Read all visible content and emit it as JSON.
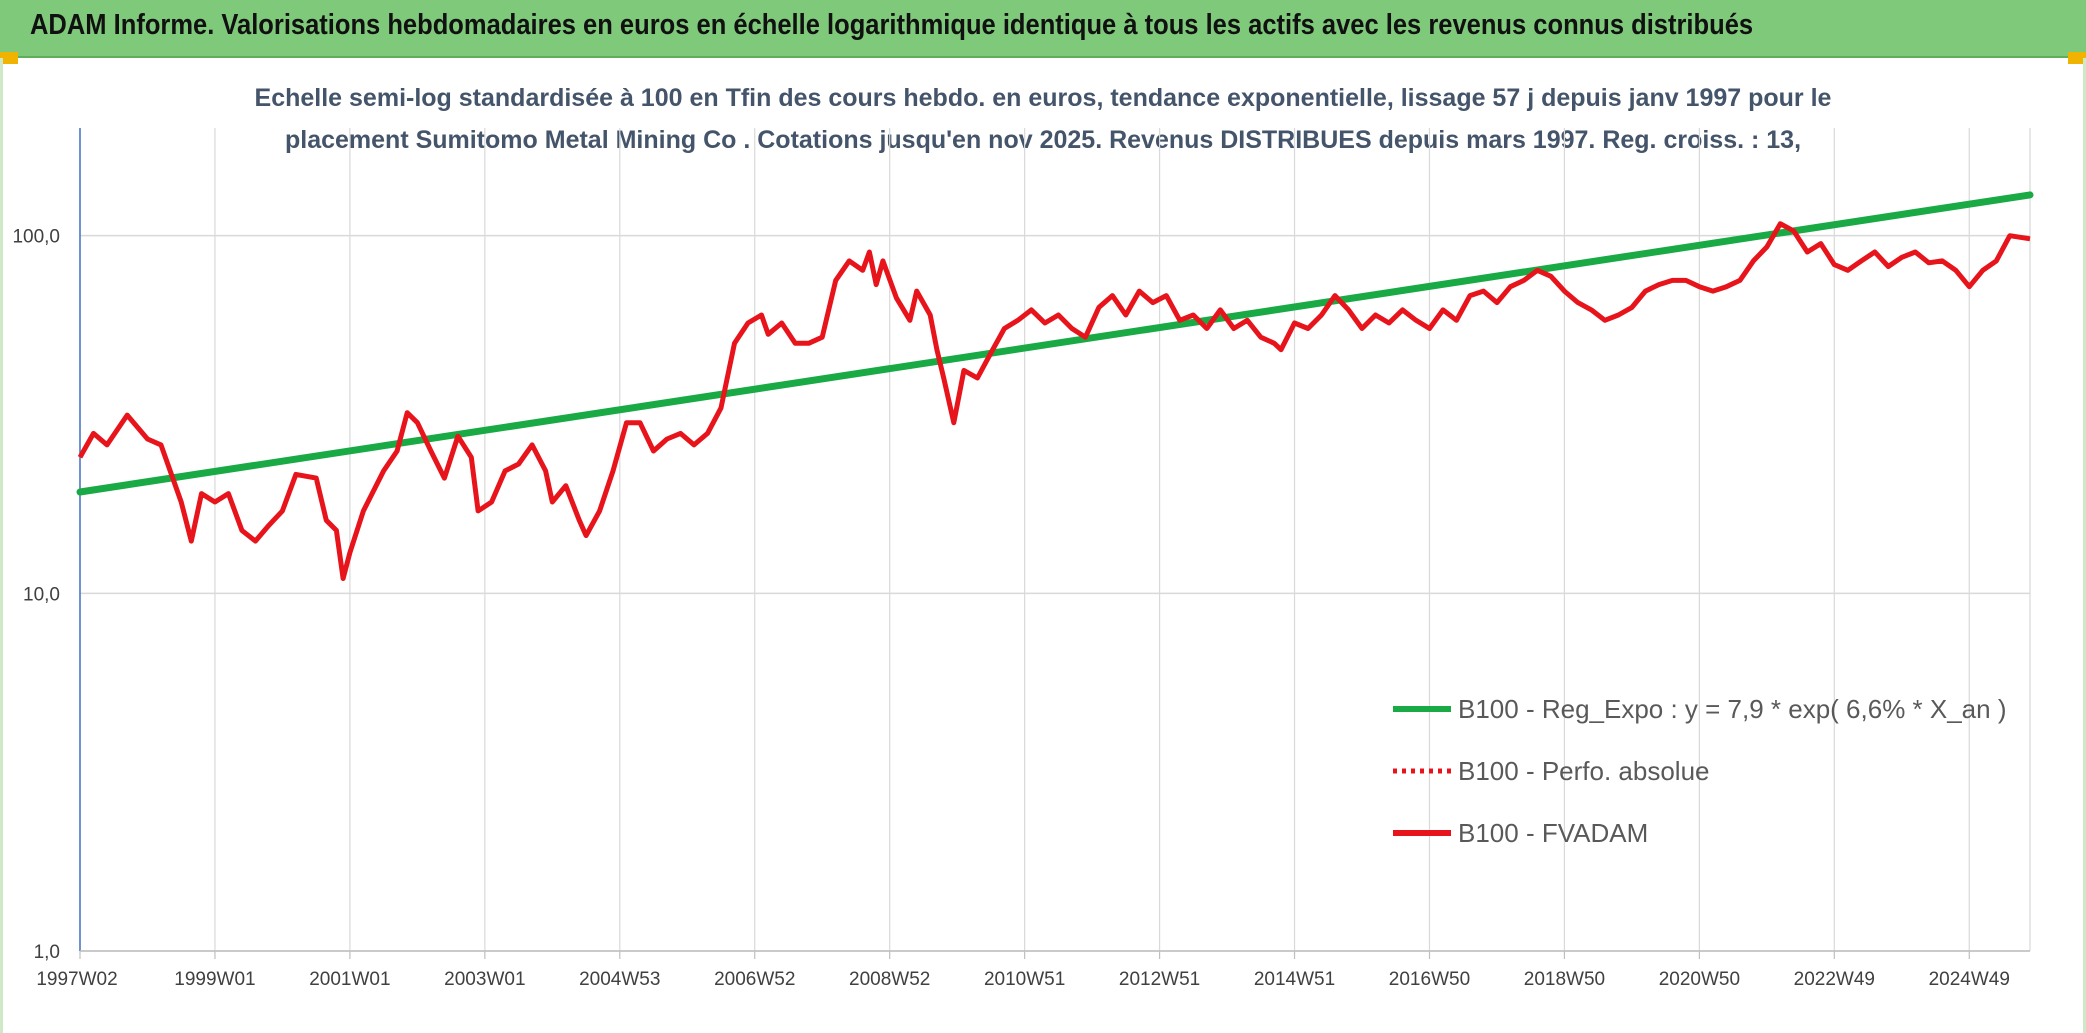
{
  "header": {
    "title": "ADAM Informe. Valorisations hebdomadaires en euros en échelle logarithmique identique à tous les actifs avec les revenus connus distribués"
  },
  "colors": {
    "header_bg": "#7fc97a",
    "regression": "#1aaa45",
    "fvadam": "#e8141b",
    "grid": "#d9d9d9",
    "axis": "#4472c4"
  },
  "chart_data": {
    "type": "line",
    "scale": "log",
    "title_lines": [
      "Echelle semi-log standardisée à 100 en Tfin des cours hebdo. en euros, tendance exponentielle, lissage 57 j depuis janv 1997 pour le",
      "placement Sumitomo Metal Mining Co . Cotations jusqu'en nov 2025. Revenus DISTRIBUES depuis mars 1997. Reg. croiss. : 13,"
    ],
    "y_ticks": [
      "1,0",
      "10,0",
      "100,0"
    ],
    "ylim": [
      1,
      200
    ],
    "xlim": [
      1997.0,
      2025.9
    ],
    "x_ticks": [
      {
        "label": "1997W02",
        "year": 1997.0
      },
      {
        "label": "1999W01",
        "year": 1999.0
      },
      {
        "label": "2001W01",
        "year": 2001.0
      },
      {
        "label": "2003W01",
        "year": 2003.0
      },
      {
        "label": "2004W53",
        "year": 2005.0
      },
      {
        "label": "2006W52",
        "year": 2007.0
      },
      {
        "label": "2008W52",
        "year": 2009.0
      },
      {
        "label": "2010W51",
        "year": 2011.0
      },
      {
        "label": "2012W51",
        "year": 2013.0
      },
      {
        "label": "2014W51",
        "year": 2015.0
      },
      {
        "label": "2016W50",
        "year": 2017.0
      },
      {
        "label": "2018W50",
        "year": 2019.0
      },
      {
        "label": "2020W50",
        "year": 2021.0
      },
      {
        "label": "2022W49",
        "year": 2023.0
      },
      {
        "label": "2024W49",
        "year": 2025.0
      }
    ],
    "legend": [
      {
        "label": "B100 - Reg_Expo : y = 7,9 * exp( 6,6% *  X_an )",
        "style": "solid",
        "color": "#1aaa45"
      },
      {
        "label": "B100 - Perfo. absolue",
        "style": "dotted",
        "color": "#e8141b"
      },
      {
        "label": "B100 - FVADAM",
        "style": "solid",
        "color": "#e8141b"
      }
    ],
    "series": [
      {
        "name": "B100 - Reg_Expo",
        "points": [
          [
            1997.0,
            19.2
          ],
          [
            2025.9,
            130
          ]
        ]
      },
      {
        "name": "B100 - FVADAM",
        "points": [
          [
            1997.0,
            24
          ],
          [
            1997.2,
            28
          ],
          [
            1997.4,
            26
          ],
          [
            1997.7,
            31.5
          ],
          [
            1998.0,
            27
          ],
          [
            1998.2,
            26
          ],
          [
            1998.5,
            18
          ],
          [
            1998.65,
            14
          ],
          [
            1998.8,
            19
          ],
          [
            1999.0,
            18
          ],
          [
            1999.2,
            19
          ],
          [
            1999.4,
            15
          ],
          [
            1999.6,
            14
          ],
          [
            1999.8,
            15.5
          ],
          [
            2000.0,
            17
          ],
          [
            2000.2,
            21.5
          ],
          [
            2000.5,
            21
          ],
          [
            2000.65,
            16
          ],
          [
            2000.8,
            15
          ],
          [
            2000.9,
            11
          ],
          [
            2001.0,
            13
          ],
          [
            2001.2,
            17
          ],
          [
            2001.5,
            22
          ],
          [
            2001.7,
            25
          ],
          [
            2001.85,
            32
          ],
          [
            2002.0,
            30
          ],
          [
            2002.2,
            25
          ],
          [
            2002.4,
            21
          ],
          [
            2002.6,
            27.5
          ],
          [
            2002.8,
            24
          ],
          [
            2002.9,
            17
          ],
          [
            2003.1,
            18
          ],
          [
            2003.3,
            22
          ],
          [
            2003.5,
            23
          ],
          [
            2003.7,
            26
          ],
          [
            2003.9,
            22
          ],
          [
            2004.0,
            18
          ],
          [
            2004.2,
            20
          ],
          [
            2004.4,
            16
          ],
          [
            2004.5,
            14.5
          ],
          [
            2004.7,
            17
          ],
          [
            2004.9,
            22
          ],
          [
            2005.1,
            30
          ],
          [
            2005.3,
            30
          ],
          [
            2005.5,
            25
          ],
          [
            2005.7,
            27
          ],
          [
            2005.9,
            28
          ],
          [
            2006.1,
            26
          ],
          [
            2006.3,
            28
          ],
          [
            2006.5,
            33
          ],
          [
            2006.7,
            50
          ],
          [
            2006.9,
            57
          ],
          [
            2007.1,
            60
          ],
          [
            2007.2,
            53
          ],
          [
            2007.4,
            57
          ],
          [
            2007.6,
            50
          ],
          [
            2007.8,
            50
          ],
          [
            2008.0,
            52
          ],
          [
            2008.2,
            75
          ],
          [
            2008.4,
            85
          ],
          [
            2008.6,
            80
          ],
          [
            2008.7,
            90
          ],
          [
            2008.8,
            73
          ],
          [
            2008.9,
            85
          ],
          [
            2009.1,
            67
          ],
          [
            2009.3,
            58
          ],
          [
            2009.4,
            70
          ],
          [
            2009.6,
            60
          ],
          [
            2009.7,
            48
          ],
          [
            2009.8,
            40
          ],
          [
            2009.95,
            30
          ],
          [
            2010.1,
            42
          ],
          [
            2010.3,
            40
          ],
          [
            2010.5,
            47
          ],
          [
            2010.7,
            55
          ],
          [
            2010.9,
            58
          ],
          [
            2011.1,
            62
          ],
          [
            2011.3,
            57
          ],
          [
            2011.5,
            60
          ],
          [
            2011.7,
            55
          ],
          [
            2011.9,
            52
          ],
          [
            2012.1,
            63
          ],
          [
            2012.3,
            68
          ],
          [
            2012.5,
            60
          ],
          [
            2012.7,
            70
          ],
          [
            2012.9,
            65
          ],
          [
            2013.1,
            68
          ],
          [
            2013.3,
            58
          ],
          [
            2013.5,
            60
          ],
          [
            2013.7,
            55
          ],
          [
            2013.9,
            62
          ],
          [
            2014.1,
            55
          ],
          [
            2014.3,
            58
          ],
          [
            2014.5,
            52
          ],
          [
            2014.7,
            50
          ],
          [
            2014.8,
            48
          ],
          [
            2015.0,
            57
          ],
          [
            2015.2,
            55
          ],
          [
            2015.4,
            60
          ],
          [
            2015.6,
            68
          ],
          [
            2015.8,
            62
          ],
          [
            2016.0,
            55
          ],
          [
            2016.2,
            60
          ],
          [
            2016.4,
            57
          ],
          [
            2016.6,
            62
          ],
          [
            2016.8,
            58
          ],
          [
            2017.0,
            55
          ],
          [
            2017.2,
            62
          ],
          [
            2017.4,
            58
          ],
          [
            2017.6,
            68
          ],
          [
            2017.8,
            70
          ],
          [
            2018.0,
            65
          ],
          [
            2018.2,
            72
          ],
          [
            2018.4,
            75
          ],
          [
            2018.6,
            80
          ],
          [
            2018.8,
            77
          ],
          [
            2019.0,
            70
          ],
          [
            2019.2,
            65
          ],
          [
            2019.4,
            62
          ],
          [
            2019.6,
            58
          ],
          [
            2019.8,
            60
          ],
          [
            2020.0,
            63
          ],
          [
            2020.2,
            70
          ],
          [
            2020.4,
            73
          ],
          [
            2020.6,
            75
          ],
          [
            2020.8,
            75
          ],
          [
            2021.0,
            72
          ],
          [
            2021.2,
            70
          ],
          [
            2021.4,
            72
          ],
          [
            2021.6,
            75
          ],
          [
            2021.8,
            85
          ],
          [
            2022.0,
            93
          ],
          [
            2022.2,
            108
          ],
          [
            2022.4,
            103
          ],
          [
            2022.6,
            90
          ],
          [
            2022.8,
            95
          ],
          [
            2023.0,
            83
          ],
          [
            2023.2,
            80
          ],
          [
            2023.4,
            85
          ],
          [
            2023.6,
            90
          ],
          [
            2023.8,
            82
          ],
          [
            2024.0,
            87
          ],
          [
            2024.2,
            90
          ],
          [
            2024.4,
            84
          ],
          [
            2024.6,
            85
          ],
          [
            2024.8,
            80
          ],
          [
            2025.0,
            72
          ],
          [
            2025.2,
            80
          ],
          [
            2025.4,
            85
          ],
          [
            2025.6,
            100
          ],
          [
            2025.9,
            98
          ]
        ]
      }
    ]
  }
}
